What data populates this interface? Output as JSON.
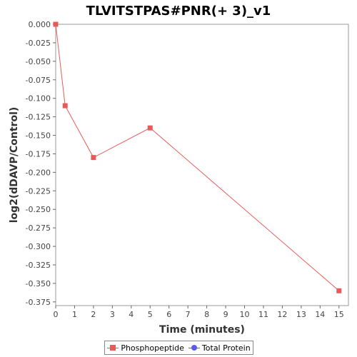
{
  "chart_data": {
    "type": "line",
    "title": "TLVITSTPAS#PNR(+ 3)_v1",
    "xlabel": "Time (minutes)",
    "ylabel": "log2(dDAVP/Control)",
    "xlim": [
      0,
      15.5
    ],
    "ylim": [
      -0.38,
      0.0
    ],
    "x_ticks": [
      0,
      1,
      2,
      3,
      4,
      5,
      6,
      7,
      8,
      9,
      10,
      11,
      12,
      13,
      14,
      15
    ],
    "y_ticks": [
      0.0,
      -0.025,
      -0.05,
      -0.075,
      -0.1,
      -0.125,
      -0.15,
      -0.175,
      -0.2,
      -0.225,
      -0.25,
      -0.275,
      -0.3,
      -0.325,
      -0.35,
      -0.375
    ],
    "y_tick_labels": [
      "0.000",
      "-0.025",
      "-0.050",
      "-0.075",
      "-0.100",
      "-0.125",
      "-0.150",
      "-0.175",
      "-0.200",
      "-0.225",
      "-0.250",
      "-0.275",
      "-0.300",
      "-0.325",
      "-0.350",
      "-0.375"
    ],
    "grid": false,
    "legend_position": "bottom",
    "series": [
      {
        "name": "Phosphopeptide",
        "color": "#e85a5a",
        "marker": "square",
        "x": [
          0,
          0.5,
          2,
          5,
          15
        ],
        "y": [
          0.0,
          -0.11,
          -0.18,
          -0.14,
          -0.36
        ]
      },
      {
        "name": "Total Protein",
        "color": "#5a5ae8",
        "marker": "circle",
        "x": [],
        "y": []
      }
    ]
  }
}
